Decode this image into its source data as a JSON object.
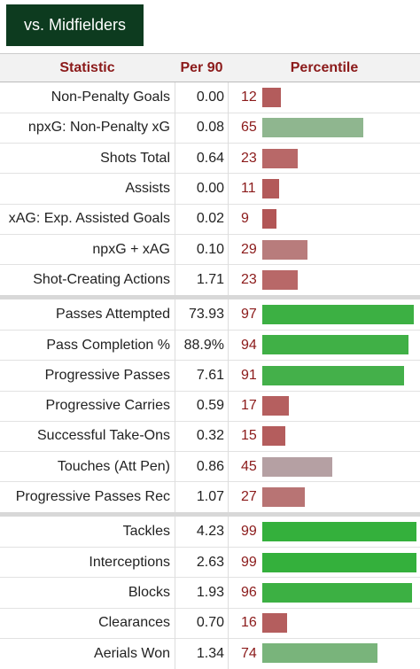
{
  "button": {
    "label": "vs. Midfielders"
  },
  "table": {
    "headers": [
      "Statistic",
      "Per 90",
      "Percentile"
    ],
    "groups": [
      [
        {
          "stat": "Non-Penalty Goals",
          "per90": "0.00",
          "percentile": 12,
          "color": "#b35c5c"
        },
        {
          "stat": "npxG: Non-Penalty xG",
          "per90": "0.08",
          "percentile": 65,
          "color": "#8fb68f"
        },
        {
          "stat": "Shots Total",
          "per90": "0.64",
          "percentile": 23,
          "color": "#b86868"
        },
        {
          "stat": "Assists",
          "per90": "0.00",
          "percentile": 11,
          "color": "#b35a5a"
        },
        {
          "stat": "xAG: Exp. Assisted Goals",
          "per90": "0.02",
          "percentile": 9,
          "color": "#b25656"
        },
        {
          "stat": "npxG + xAG",
          "per90": "0.10",
          "percentile": 29,
          "color": "#b87c7c"
        },
        {
          "stat": "Shot-Creating Actions",
          "per90": "1.71",
          "percentile": 23,
          "color": "#b86868"
        }
      ],
      [
        {
          "stat": "Passes Attempted",
          "per90": "73.93",
          "percentile": 97,
          "color": "#3cb043"
        },
        {
          "stat": "Pass Completion %",
          "per90": "88.9%",
          "percentile": 94,
          "color": "#40b046"
        },
        {
          "stat": "Progressive Passes",
          "per90": "7.61",
          "percentile": 91,
          "color": "#44b04a"
        },
        {
          "stat": "Progressive Carries",
          "per90": "0.59",
          "percentile": 17,
          "color": "#b55f5f"
        },
        {
          "stat": "Successful Take-Ons",
          "per90": "0.32",
          "percentile": 15,
          "color": "#b45d5d"
        },
        {
          "stat": "Touches (Att Pen)",
          "per90": "0.86",
          "percentile": 45,
          "color": "#b5a0a3"
        },
        {
          "stat": "Progressive Passes Rec",
          "per90": "1.07",
          "percentile": 27,
          "color": "#b87474"
        }
      ],
      [
        {
          "stat": "Tackles",
          "per90": "4.23",
          "percentile": 99,
          "color": "#34b03c"
        },
        {
          "stat": "Interceptions",
          "per90": "2.63",
          "percentile": 99,
          "color": "#34b03c"
        },
        {
          "stat": "Blocks",
          "per90": "1.93",
          "percentile": 96,
          "color": "#3cb043"
        },
        {
          "stat": "Clearances",
          "per90": "0.70",
          "percentile": 16,
          "color": "#b45e5e"
        },
        {
          "stat": "Aerials Won",
          "per90": "1.34",
          "percentile": 74,
          "color": "#79b47b"
        }
      ]
    ]
  }
}
